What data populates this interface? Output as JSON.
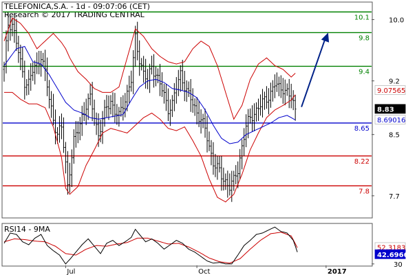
{
  "header": {
    "title": "TELEFONICA,S.A. - 1d - 09:07:06 (CET)",
    "subtitle": "Research © 2017 TRADING CENTRAL"
  },
  "colors": {
    "resistance": "#008000",
    "support": "#cc0000",
    "pivot": "#0000cc",
    "bollinger": "#cc0000",
    "moving_average": "#0000cc",
    "price": "#000000",
    "rsi": "#000000",
    "rsi_ma": "#cc0000",
    "arrow": "#002288"
  },
  "chart_data": [
    {
      "type": "line",
      "name": "price-panel",
      "title": "TELEFONICA,S.A. - 1d - 09:07:06 (CET)",
      "subtitle": "Research © 2017 TRADING CENTRAL",
      "x_axis": {
        "labels": [
          {
            "label": "Jul",
            "index": 30
          },
          {
            "label": "Oct",
            "index": 94
          },
          {
            "label": "2017",
            "index": 157
          }
        ],
        "count": 175
      },
      "y_axis": {
        "range": [
          7.42,
          10.22
        ],
        "ticks": [
          {
            "label": "10.0",
            "value": 10.0
          },
          {
            "label": "9.2",
            "value": 9.2
          },
          {
            "label": "8.5",
            "value": 8.5
          },
          {
            "label": "7.7",
            "value": 7.7
          }
        ]
      },
      "levels": [
        {
          "label": "10.1",
          "value": 10.1,
          "kind": "resistance"
        },
        {
          "label": "9.8",
          "value": 9.83,
          "kind": "resistance"
        },
        {
          "label": "9.4",
          "value": 9.39,
          "kind": "resistance"
        },
        {
          "label": "8.65",
          "value": 8.65,
          "kind": "pivot"
        },
        {
          "label": "8.22",
          "value": 8.22,
          "kind": "support"
        },
        {
          "label": "7.8",
          "value": 7.83,
          "kind": "support"
        }
      ],
      "tags": [
        {
          "label": "9.07565",
          "value": 9.07565,
          "kind": "bollinger"
        },
        {
          "label": "8.83",
          "value": 8.83,
          "kind": "last"
        },
        {
          "label": "8.69016",
          "value": 8.69016,
          "kind": "moving_average"
        }
      ],
      "close_anchors": [
        [
          0,
          9.35
        ],
        [
          2,
          9.95
        ],
        [
          4,
          9.95
        ],
        [
          6,
          9.7
        ],
        [
          8,
          9.42
        ],
        [
          10,
          9.2
        ],
        [
          12,
          9.18
        ],
        [
          14,
          9.32
        ],
        [
          16,
          9.4
        ],
        [
          18,
          9.55
        ],
        [
          20,
          9.3
        ],
        [
          22,
          8.95
        ],
        [
          24,
          8.72
        ],
        [
          26,
          8.5
        ],
        [
          28,
          8.58
        ],
        [
          30,
          8.12
        ],
        [
          31,
          7.85
        ],
        [
          32,
          8.05
        ],
        [
          34,
          8.4
        ],
        [
          36,
          8.55
        ],
        [
          38,
          8.75
        ],
        [
          40,
          8.88
        ],
        [
          42,
          8.95
        ],
        [
          44,
          8.75
        ],
        [
          46,
          8.5
        ],
        [
          48,
          8.68
        ],
        [
          50,
          8.85
        ],
        [
          52,
          8.95
        ],
        [
          54,
          8.8
        ],
        [
          56,
          8.72
        ],
        [
          58,
          8.9
        ],
        [
          60,
          9.05
        ],
        [
          62,
          9.2
        ],
        [
          63,
          9.45
        ],
        [
          64,
          9.75
        ],
        [
          66,
          9.5
        ],
        [
          68,
          9.3
        ],
        [
          70,
          9.18
        ],
        [
          72,
          9.4
        ],
        [
          74,
          9.3
        ],
        [
          76,
          9.15
        ],
        [
          78,
          9.0
        ],
        [
          80,
          8.85
        ],
        [
          82,
          8.9
        ],
        [
          84,
          9.1
        ],
        [
          86,
          9.3
        ],
        [
          88,
          9.15
        ],
        [
          90,
          9.0
        ],
        [
          92,
          8.9
        ],
        [
          94,
          8.8
        ],
        [
          96,
          8.7
        ],
        [
          98,
          8.55
        ],
        [
          100,
          8.35
        ],
        [
          102,
          8.15
        ],
        [
          104,
          8.05
        ],
        [
          106,
          7.95
        ],
        [
          108,
          7.9
        ],
        [
          110,
          7.82
        ],
        [
          112,
          7.88
        ],
        [
          114,
          8.05
        ],
        [
          116,
          8.35
        ],
        [
          118,
          8.6
        ],
        [
          120,
          8.7
        ],
        [
          122,
          8.8
        ],
        [
          124,
          8.85
        ],
        [
          126,
          8.9
        ],
        [
          128,
          8.98
        ],
        [
          130,
          9.05
        ],
        [
          132,
          9.15
        ],
        [
          134,
          9.1
        ],
        [
          136,
          9.12
        ],
        [
          138,
          9.05
        ],
        [
          140,
          8.95
        ],
        [
          142,
          8.83
        ]
      ],
      "bollinger_anchors": [
        [
          0,
          9.05,
          9.72
        ],
        [
          4,
          9.05,
          10.02
        ],
        [
          8,
          8.96,
          9.95
        ],
        [
          12,
          8.9,
          9.82
        ],
        [
          16,
          8.9,
          9.62
        ],
        [
          20,
          8.85,
          9.72
        ],
        [
          24,
          8.6,
          9.82
        ],
        [
          28,
          8.2,
          9.7
        ],
        [
          30,
          7.8,
          9.62
        ],
        [
          32,
          7.72,
          9.5
        ],
        [
          36,
          7.82,
          9.32
        ],
        [
          40,
          8.1,
          9.22
        ],
        [
          44,
          8.3,
          9.1
        ],
        [
          48,
          8.52,
          9.05
        ],
        [
          52,
          8.58,
          9.05
        ],
        [
          56,
          8.55,
          9.12
        ],
        [
          60,
          8.52,
          9.5
        ],
        [
          64,
          8.62,
          9.88
        ],
        [
          68,
          8.72,
          9.78
        ],
        [
          72,
          8.78,
          9.62
        ],
        [
          76,
          8.7,
          9.52
        ],
        [
          80,
          8.58,
          9.45
        ],
        [
          84,
          8.55,
          9.42
        ],
        [
          88,
          8.6,
          9.45
        ],
        [
          92,
          8.42,
          9.62
        ],
        [
          96,
          8.22,
          9.72
        ],
        [
          100,
          7.92,
          9.65
        ],
        [
          104,
          7.68,
          9.4
        ],
        [
          108,
          7.62,
          9.05
        ],
        [
          112,
          7.72,
          8.7
        ],
        [
          116,
          7.98,
          8.88
        ],
        [
          120,
          8.3,
          9.22
        ],
        [
          124,
          8.52,
          9.42
        ],
        [
          128,
          8.72,
          9.5
        ],
        [
          132,
          8.82,
          9.4
        ],
        [
          136,
          8.88,
          9.35
        ],
        [
          140,
          8.95,
          9.25
        ],
        [
          142,
          9.02,
          9.3
        ]
      ],
      "ma_anchors": [
        [
          0,
          9.4
        ],
        [
          6,
          9.62
        ],
        [
          10,
          9.65
        ],
        [
          14,
          9.45
        ],
        [
          18,
          9.42
        ],
        [
          22,
          9.28
        ],
        [
          26,
          9.1
        ],
        [
          30,
          8.92
        ],
        [
          34,
          8.82
        ],
        [
          38,
          8.78
        ],
        [
          42,
          8.72
        ],
        [
          46,
          8.7
        ],
        [
          50,
          8.72
        ],
        [
          54,
          8.74
        ],
        [
          58,
          8.76
        ],
        [
          62,
          8.95
        ],
        [
          66,
          9.12
        ],
        [
          70,
          9.2
        ],
        [
          74,
          9.22
        ],
        [
          78,
          9.18
        ],
        [
          82,
          9.1
        ],
        [
          86,
          9.08
        ],
        [
          90,
          9.05
        ],
        [
          94,
          8.98
        ],
        [
          98,
          8.82
        ],
        [
          102,
          8.62
        ],
        [
          106,
          8.45
        ],
        [
          110,
          8.38
        ],
        [
          114,
          8.4
        ],
        [
          118,
          8.5
        ],
        [
          122,
          8.55
        ],
        [
          126,
          8.6
        ],
        [
          130,
          8.65
        ],
        [
          134,
          8.72
        ],
        [
          138,
          8.75
        ],
        [
          142,
          8.69
        ]
      ],
      "forecast": {
        "from": [
          145,
          8.86
        ],
        "to": [
          158,
          9.83
        ]
      }
    },
    {
      "type": "line",
      "name": "rsi-panel",
      "title": "RSI14 - 9MA",
      "y_axis": {
        "range": [
          28,
          84
        ],
        "ticks": [
          {
            "label": "30",
            "value": 30
          }
        ]
      },
      "tags": [
        {
          "label": "52.3183",
          "value": 52.3183,
          "kind": "rsi_ma"
        },
        {
          "label": "42.6966",
          "value": 42.6966,
          "kind": "rsi"
        }
      ],
      "rsi_anchors": [
        [
          0,
          58
        ],
        [
          3,
          72
        ],
        [
          6,
          70
        ],
        [
          9,
          60
        ],
        [
          12,
          56
        ],
        [
          15,
          65
        ],
        [
          18,
          70
        ],
        [
          21,
          55
        ],
        [
          24,
          48
        ],
        [
          27,
          42
        ],
        [
          30,
          30
        ],
        [
          32,
          36
        ],
        [
          35,
          46
        ],
        [
          38,
          56
        ],
        [
          41,
          64
        ],
        [
          44,
          54
        ],
        [
          47,
          44
        ],
        [
          50,
          58
        ],
        [
          53,
          62
        ],
        [
          56,
          55
        ],
        [
          59,
          60
        ],
        [
          62,
          66
        ],
        [
          64,
          77
        ],
        [
          66,
          70
        ],
        [
          69,
          60
        ],
        [
          72,
          64
        ],
        [
          75,
          58
        ],
        [
          78,
          50
        ],
        [
          81,
          56
        ],
        [
          84,
          62
        ],
        [
          87,
          58
        ],
        [
          90,
          50
        ],
        [
          93,
          46
        ],
        [
          96,
          40
        ],
        [
          99,
          34
        ],
        [
          102,
          31
        ],
        [
          105,
          32
        ],
        [
          108,
          30
        ],
        [
          111,
          30
        ],
        [
          114,
          42
        ],
        [
          117,
          55
        ],
        [
          120,
          62
        ],
        [
          123,
          70
        ],
        [
          126,
          72
        ],
        [
          129,
          76
        ],
        [
          132,
          80
        ],
        [
          135,
          74
        ],
        [
          138,
          72
        ],
        [
          141,
          62
        ],
        [
          143,
          46
        ]
      ],
      "ma_anchors": [
        [
          0,
          60
        ],
        [
          5,
          64
        ],
        [
          10,
          63
        ],
        [
          15,
          61
        ],
        [
          20,
          60
        ],
        [
          25,
          54
        ],
        [
          30,
          44
        ],
        [
          35,
          42
        ],
        [
          40,
          50
        ],
        [
          45,
          55
        ],
        [
          50,
          54
        ],
        [
          55,
          57
        ],
        [
          60,
          59
        ],
        [
          65,
          65
        ],
        [
          70,
          65
        ],
        [
          75,
          61
        ],
        [
          80,
          57
        ],
        [
          85,
          58
        ],
        [
          90,
          53
        ],
        [
          95,
          46
        ],
        [
          100,
          38
        ],
        [
          105,
          33
        ],
        [
          110,
          31
        ],
        [
          115,
          37
        ],
        [
          120,
          50
        ],
        [
          125,
          62
        ],
        [
          130,
          71
        ],
        [
          135,
          73
        ],
        [
          140,
          68
        ],
        [
          143,
          52
        ]
      ]
    }
  ]
}
